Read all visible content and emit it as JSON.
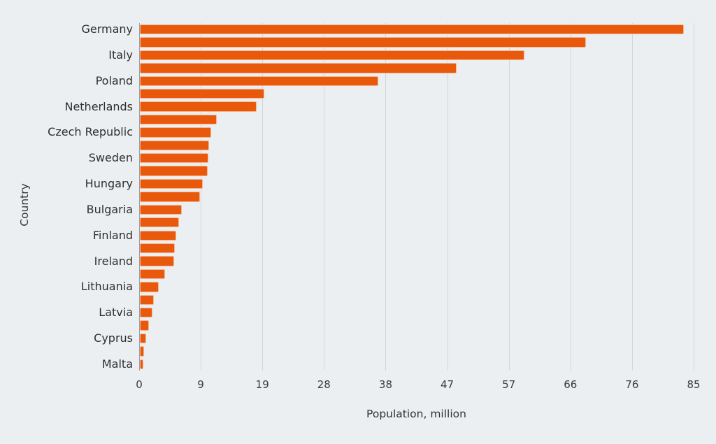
{
  "colors": {
    "background": "#ECEFF1",
    "bar": "#E8590C",
    "bar_border": "rgba(255,255,255,0.55)",
    "grid": "#D2D6D9",
    "axis": "#9AA0A4",
    "text": "#333333"
  },
  "chart_data": {
    "type": "bar",
    "orientation": "horizontal",
    "title": "",
    "xlabel": "Population, million",
    "ylabel": "Country",
    "xlim": [
      0,
      85
    ],
    "grid": true,
    "legend": false,
    "x_tick_values": [
      0,
      9.44,
      18.89,
      28.33,
      37.78,
      47.22,
      56.67,
      66.11,
      75.56,
      85
    ],
    "x_tick_labels": [
      "0",
      "9",
      "19",
      "28",
      "38",
      "47",
      "57",
      "66",
      "76",
      "85"
    ],
    "bars": [
      {
        "label": "Germany",
        "value": 83.4
      },
      {
        "label": "",
        "value": 68.4
      },
      {
        "label": "Italy",
        "value": 59.0
      },
      {
        "label": "",
        "value": 48.6
      },
      {
        "label": "Poland",
        "value": 36.6
      },
      {
        "label": "",
        "value": 19.1
      },
      {
        "label": "Netherlands",
        "value": 17.9
      },
      {
        "label": "",
        "value": 11.8
      },
      {
        "label": "Czech Republic",
        "value": 10.9
      },
      {
        "label": "",
        "value": 10.6
      },
      {
        "label": "Sweden",
        "value": 10.5
      },
      {
        "label": "",
        "value": 10.4
      },
      {
        "label": "Hungary",
        "value": 9.6
      },
      {
        "label": "",
        "value": 9.2
      },
      {
        "label": "Bulgaria",
        "value": 6.4
      },
      {
        "label": "",
        "value": 6.0
      },
      {
        "label": "Finland",
        "value": 5.6
      },
      {
        "label": "",
        "value": 5.4
      },
      {
        "label": "Ireland",
        "value": 5.3
      },
      {
        "label": "",
        "value": 3.9
      },
      {
        "label": "Lithuania",
        "value": 2.9
      },
      {
        "label": "",
        "value": 2.1
      },
      {
        "label": "Latvia",
        "value": 1.9
      },
      {
        "label": "",
        "value": 1.4
      },
      {
        "label": "Cyprus",
        "value": 0.93
      },
      {
        "label": "",
        "value": 0.67
      },
      {
        "label": "Malta",
        "value": 0.55
      }
    ]
  }
}
